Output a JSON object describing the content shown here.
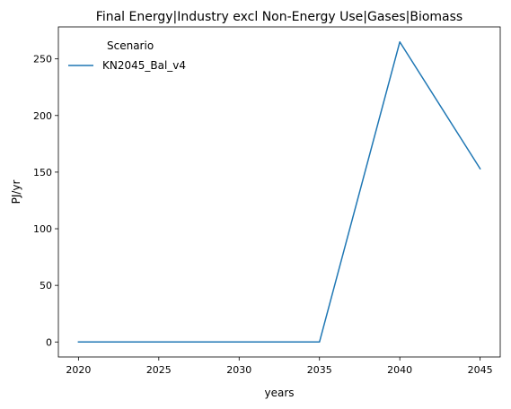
{
  "chart_data": {
    "type": "line",
    "title": "Final Energy|Industry excl Non-Energy Use|Gases|Biomass",
    "xlabel": "years",
    "ylabel": "PJ/yr",
    "x": [
      2020,
      2025,
      2030,
      2035,
      2040,
      2045
    ],
    "xticks": [
      2020,
      2025,
      2030,
      2035,
      2040,
      2045
    ],
    "yticks": [
      0,
      50,
      100,
      150,
      200,
      250
    ],
    "xlim": [
      2018.75,
      2046.25
    ],
    "ylim": [
      -13.25,
      278.25
    ],
    "grid": false,
    "legend": {
      "title": "Scenario",
      "placement": "top-left"
    },
    "series": [
      {
        "name": "KN2045_Bal_v4",
        "color": "#1f77b4",
        "values": [
          0,
          0,
          0,
          0,
          265,
          153
        ]
      }
    ]
  }
}
